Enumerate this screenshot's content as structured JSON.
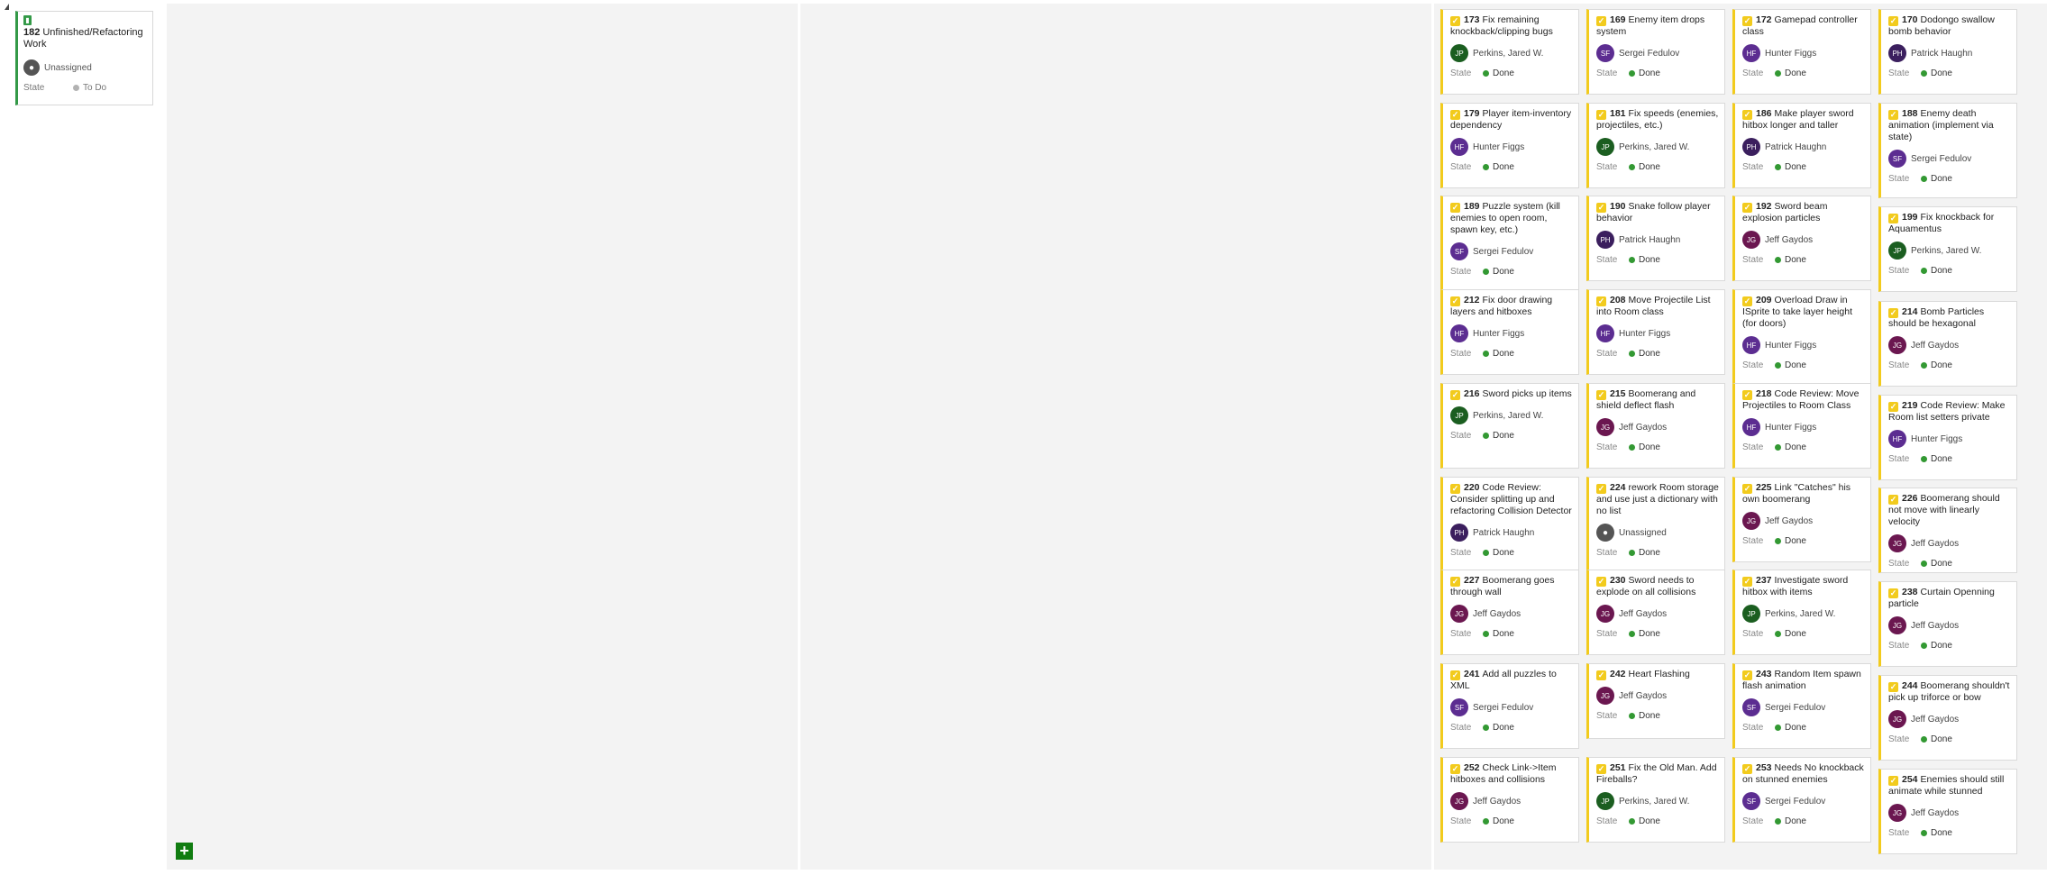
{
  "parent": {
    "id": "182",
    "title": "Unfinished/Refactoring Work",
    "assignee": "Unassigned",
    "state_label": "State",
    "state_value": "To Do"
  },
  "add_button_label": "+",
  "colors": {
    "done": "#339933",
    "todo": "#b2b2b2",
    "task_accent": "#f2cb1d",
    "parent_accent": "#339947",
    "avatars": {
      "JP": "#1b5e20",
      "SF": "#5c2d91",
      "HF": "#5c2d91",
      "PH": "#3b1f5e",
      "JG": "#6b1750",
      "UN": "#555555"
    }
  },
  "columns": [
    {
      "cards": [
        {
          "id": "173",
          "title": "Fix remaining knockback/clipping bugs",
          "initials": "JP",
          "assignee": "Perkins, Jared W.",
          "state_label": "State",
          "state": "Done"
        },
        {
          "id": "179",
          "title": "Player item-inventory dependency",
          "initials": "HF",
          "assignee": "Hunter Figgs",
          "state_label": "State",
          "state": "Done"
        },
        {
          "id": "189",
          "title": "Puzzle system (kill enemies to open room, spawn key, etc.)",
          "initials": "SF",
          "assignee": "Sergei Fedulov",
          "state_label": "State",
          "state": "Done"
        },
        {
          "id": "212",
          "title": "Fix door drawing layers and hitboxes",
          "initials": "HF",
          "assignee": "Hunter Figgs",
          "state_label": "State",
          "state": "Done"
        },
        {
          "id": "216",
          "title": "Sword picks up items",
          "initials": "JP",
          "assignee": "Perkins, Jared W.",
          "state_label": "State",
          "state": "Done"
        },
        {
          "id": "220",
          "title": "Code Review: Consider splitting up and refactoring Collision Detector",
          "initials": "PH",
          "assignee": "Patrick Haughn",
          "state_label": "State",
          "state": "Done"
        },
        {
          "id": "227",
          "title": "Boomerang goes through wall",
          "initials": "JG",
          "assignee": "Jeff Gaydos",
          "state_label": "State",
          "state": "Done"
        },
        {
          "id": "241",
          "title": "Add all puzzles to XML",
          "initials": "SF",
          "assignee": "Sergei Fedulov",
          "state_label": "State",
          "state": "Done"
        },
        {
          "id": "252",
          "title": "Check Link->Item hitboxes and collisions",
          "initials": "JG",
          "assignee": "Jeff Gaydos",
          "state_label": "State",
          "state": "Done"
        }
      ]
    },
    {
      "cards": [
        {
          "id": "169",
          "title": "Enemy item drops system",
          "initials": "SF",
          "assignee": "Sergei Fedulov",
          "state_label": "State",
          "state": "Done"
        },
        {
          "id": "181",
          "title": "Fix speeds (enemies, projectiles, etc.)",
          "initials": "JP",
          "assignee": "Perkins, Jared W.",
          "state_label": "State",
          "state": "Done"
        },
        {
          "id": "190",
          "title": "Snake follow player behavior",
          "initials": "PH",
          "assignee": "Patrick Haughn",
          "state_label": "State",
          "state": "Done"
        },
        {
          "id": "208",
          "title": "Move Projectile List into Room class",
          "initials": "HF",
          "assignee": "Hunter Figgs",
          "state_label": "State",
          "state": "Done"
        },
        {
          "id": "215",
          "title": "Boomerang and shield deflect flash",
          "initials": "JG",
          "assignee": "Jeff Gaydos",
          "state_label": "State",
          "state": "Done"
        },
        {
          "id": "224",
          "title": "rework Room storage and use just a dictionary with no list",
          "initials": "UN",
          "assignee": "Unassigned",
          "state_label": "State",
          "state": "Done"
        },
        {
          "id": "230",
          "title": "Sword needs to explode on all collisions",
          "initials": "JG",
          "assignee": "Jeff Gaydos",
          "state_label": "State",
          "state": "Done"
        },
        {
          "id": "242",
          "title": "Heart Flashing",
          "initials": "JG",
          "assignee": "Jeff Gaydos",
          "state_label": "State",
          "state": "Done"
        },
        {
          "id": "251",
          "title": "Fix the Old Man. Add Fireballs?",
          "initials": "JP",
          "assignee": "Perkins, Jared W.",
          "state_label": "State",
          "state": "Done"
        }
      ]
    },
    {
      "cards": [
        {
          "id": "172",
          "title": "Gamepad controller class",
          "initials": "HF",
          "assignee": "Hunter Figgs",
          "state_label": "State",
          "state": "Done"
        },
        {
          "id": "186",
          "title": "Make player sword hitbox longer and taller",
          "initials": "PH",
          "assignee": "Patrick Haughn",
          "state_label": "State",
          "state": "Done"
        },
        {
          "id": "192",
          "title": "Sword beam explosion particles",
          "initials": "JG",
          "assignee": "Jeff Gaydos",
          "state_label": "State",
          "state": "Done"
        },
        {
          "id": "209",
          "title": "Overload Draw in ISprite to take layer height (for doors)",
          "initials": "HF",
          "assignee": "Hunter Figgs",
          "state_label": "State",
          "state": "Done"
        },
        {
          "id": "218",
          "title": "Code Review: Move Projectiles to Room Class",
          "initials": "HF",
          "assignee": "Hunter Figgs",
          "state_label": "State",
          "state": "Done"
        },
        {
          "id": "225",
          "title": "Link \"Catches\" his own boomerang",
          "initials": "JG",
          "assignee": "Jeff Gaydos",
          "state_label": "State",
          "state": "Done"
        },
        {
          "id": "237",
          "title": "Investigate sword hitbox with items",
          "initials": "JP",
          "assignee": "Perkins, Jared W.",
          "state_label": "State",
          "state": "Done"
        },
        {
          "id": "243",
          "title": "Random Item spawn flash animation",
          "initials": "SF",
          "assignee": "Sergei Fedulov",
          "state_label": "State",
          "state": "Done"
        },
        {
          "id": "253",
          "title": "Needs No knockback on stunned enemies",
          "initials": "SF",
          "assignee": "Sergei Fedulov",
          "state_label": "State",
          "state": "Done"
        }
      ]
    },
    {
      "cards": [
        {
          "id": "170",
          "title": "Dodongo swallow bomb behavior",
          "initials": "PH",
          "assignee": "Patrick Haughn",
          "state_label": "State",
          "state": "Done"
        },
        {
          "id": "188",
          "title": "Enemy death animation (implement via state)",
          "initials": "SF",
          "assignee": "Sergei Fedulov",
          "state_label": "State",
          "state": "Done"
        },
        {
          "id": "199",
          "title": "Fix knockback for Aquamentus",
          "initials": "JP",
          "assignee": "Perkins, Jared W.",
          "state_label": "State",
          "state": "Done"
        },
        {
          "id": "214",
          "title": "Bomb Particles should be hexagonal",
          "initials": "JG",
          "assignee": "Jeff Gaydos",
          "state_label": "State",
          "state": "Done"
        },
        {
          "id": "219",
          "title": "Code Review: Make Room list setters private",
          "initials": "HF",
          "assignee": "Hunter Figgs",
          "state_label": "State",
          "state": "Done"
        },
        {
          "id": "226",
          "title": "Boomerang should not move with linearly velocity",
          "initials": "JG",
          "assignee": "Jeff Gaydos",
          "state_label": "State",
          "state": "Done"
        },
        {
          "id": "238",
          "title": "Curtain Openning particle",
          "initials": "JG",
          "assignee": "Jeff Gaydos",
          "state_label": "State",
          "state": "Done"
        },
        {
          "id": "244",
          "title": "Boomerang shouldn't pick up triforce or bow",
          "initials": "JG",
          "assignee": "Jeff Gaydos",
          "state_label": "State",
          "state": "Done"
        },
        {
          "id": "254",
          "title": "Enemies should still animate while stunned",
          "initials": "JG",
          "assignee": "Jeff Gaydos",
          "state_label": "State",
          "state": "Done"
        }
      ]
    }
  ]
}
